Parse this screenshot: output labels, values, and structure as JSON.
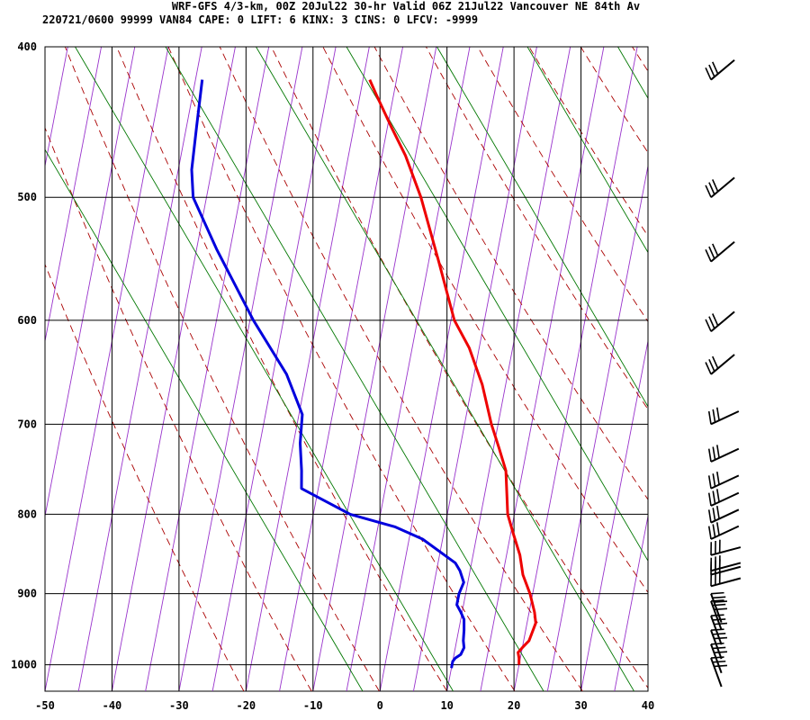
{
  "header": {
    "line1": "WRF-GFS 4/3-km, 00Z 20Jul22 30-hr Valid 06Z 21Jul22 Vancouver NE 84th Av",
    "line2": "220721/0600 99999  VAN84   CAPE:     0 LIFT:     6 KINX:     3 CINS:     0 LFCV: -9999"
  },
  "chart_data": {
    "type": "line",
    "subtype": "skew-T log-p sounding",
    "x_ticks": [
      -50,
      -40,
      -30,
      -20,
      -10,
      0,
      10,
      20,
      30,
      40
    ],
    "y_ticks": [
      400,
      500,
      600,
      700,
      800,
      900,
      1000
    ],
    "xlim": [
      -50,
      40
    ],
    "ylim": [
      1040,
      400
    ],
    "y_scale": "log (pressure, hPa)",
    "grid": true,
    "colors": {
      "temperature": "#ee0000",
      "dewpoint": "#0000dd",
      "isotherm_skewed": "#9933cc",
      "dry_adiabat": "#aa0000",
      "mixing_ratio_or_moist": "#007700",
      "grid": "#000000"
    },
    "series": [
      {
        "name": "temperature",
        "x": [
          20.0,
          19.8,
          19.5,
          20.0,
          20.8,
          21.0,
          21.3,
          20.8,
          19.6,
          18.0,
          17.0,
          15.5,
          14.0,
          12.5,
          10.8,
          9.0,
          6.5,
          3.5,
          0.5,
          -3.5,
          -8.0,
          -11.5,
          -14.5,
          -17.5,
          -19.0
        ],
        "y": [
          1000,
          990,
          982,
          975,
          965,
          955,
          940,
          925,
          900,
          875,
          850,
          825,
          800,
          750,
          725,
          700,
          660,
          625,
          600,
          550,
          500,
          470,
          450,
          430,
          420
        ]
      },
      {
        "name": "dewpoint",
        "x": [
          10.0,
          10.0,
          10.3,
          11.0,
          11.3,
          11.0,
          10.8,
          10.5,
          9.8,
          9.0,
          9.0,
          9.4,
          8.5,
          7.6,
          2.0,
          -2.5,
          -9.5,
          -17.5,
          -18.0,
          -19.0,
          -19.5,
          -23.0,
          -29.5,
          -37.0,
          -42.0,
          -43.0,
          -43.5,
          -44.0
        ],
        "y": [
          1005,
          995,
          990,
          985,
          975,
          965,
          950,
          935,
          925,
          915,
          900,
          885,
          870,
          860,
          830,
          815,
          800,
          770,
          750,
          720,
          690,
          650,
          600,
          540,
          500,
          480,
          450,
          420
        ]
      }
    ],
    "wind_barbs": {
      "note": "wind barbs shown in right column, one per level",
      "levels": [
        420,
        500,
        550,
        610,
        650,
        700,
        740,
        770,
        790,
        810,
        830,
        850,
        870,
        875,
        890,
        900,
        910,
        930,
        950,
        970,
        990
      ]
    }
  }
}
